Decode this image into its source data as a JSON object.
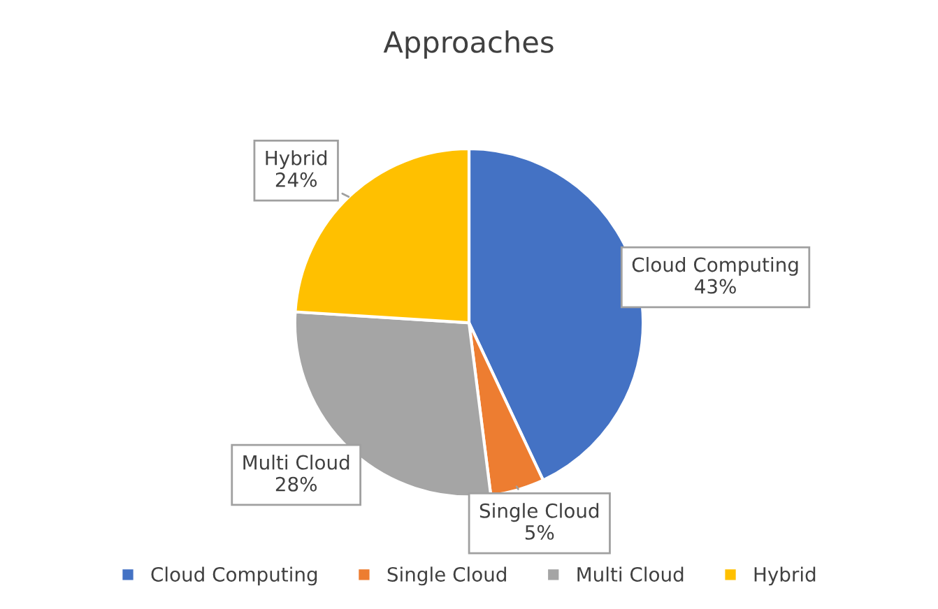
{
  "chart_data": {
    "type": "pie",
    "title": "Approaches",
    "categories": [
      "Cloud Computing",
      "Single Cloud",
      "Multi Cloud",
      "Hybrid"
    ],
    "values": [
      43,
      5,
      28,
      24
    ],
    "value_labels": [
      "43%",
      "5%",
      "28%",
      "24%"
    ],
    "colors": [
      "#4472c4",
      "#ed7d31",
      "#a5a5a5",
      "#ffc000"
    ],
    "legend": "bottom"
  }
}
